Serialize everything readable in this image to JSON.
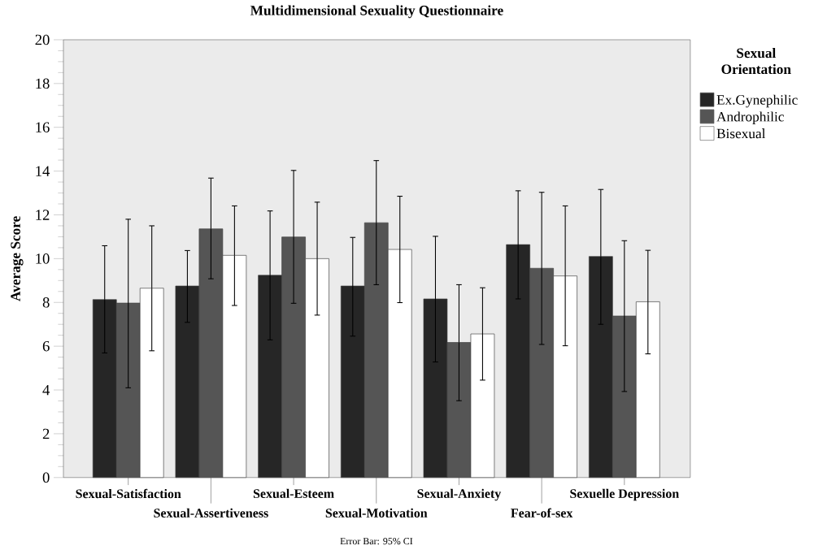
{
  "chart_data": {
    "type": "bar",
    "title": "Multidimensional Sexuality Questionnaire",
    "ylabel": "Average Score",
    "legend_title": "Sexual Orientation",
    "categories": [
      "Sexual-Satisfaction",
      "Sexual-Assertiveness",
      "Sexual-Esteem",
      "Sexual-Motivation",
      "Sexual-Anxiety",
      "Fear-of-sex",
      "Sexuelle Depression"
    ],
    "series": [
      {
        "name": "Ex.Gynephilic",
        "color": "#262626",
        "values": [
          8.13,
          8.75,
          9.24,
          8.75,
          8.16,
          10.64,
          10.1
        ],
        "errors": [
          [
            5.69,
            10.59
          ],
          [
            7.09,
            10.37
          ],
          [
            6.29,
            12.18
          ],
          [
            6.46,
            10.97
          ],
          [
            5.28,
            11.02
          ],
          [
            8.16,
            13.1
          ],
          [
            7.0,
            13.16
          ]
        ]
      },
      {
        "name": "Androphilic",
        "color": "#555555",
        "values": [
          7.97,
          11.36,
          10.99,
          11.64,
          6.17,
          9.56,
          7.38
        ],
        "errors": [
          [
            4.1,
            11.8
          ],
          [
            9.08,
            13.68
          ],
          [
            7.96,
            14.03
          ],
          [
            8.81,
            14.48
          ],
          [
            3.51,
            8.81
          ],
          [
            6.08,
            13.03
          ],
          [
            3.93,
            10.82
          ]
        ]
      },
      {
        "name": "Bisexual",
        "color": "#ffffff",
        "values": [
          8.65,
          10.15,
          10.0,
          10.42,
          6.56,
          9.21,
          8.03
        ],
        "errors": [
          [
            5.79,
            11.5
          ],
          [
            7.86,
            12.41
          ],
          [
            7.42,
            12.58
          ],
          [
            7.99,
            12.85
          ],
          [
            4.45,
            8.67
          ],
          [
            6.02,
            12.41
          ],
          [
            5.65,
            10.38
          ]
        ]
      }
    ],
    "ylim": [
      0,
      20
    ],
    "yticks": [
      0,
      2,
      4,
      6,
      8,
      10,
      12,
      14,
      16,
      18,
      20
    ],
    "legend": "right",
    "annotations": [
      "Error Bar: 95% CI"
    ]
  }
}
